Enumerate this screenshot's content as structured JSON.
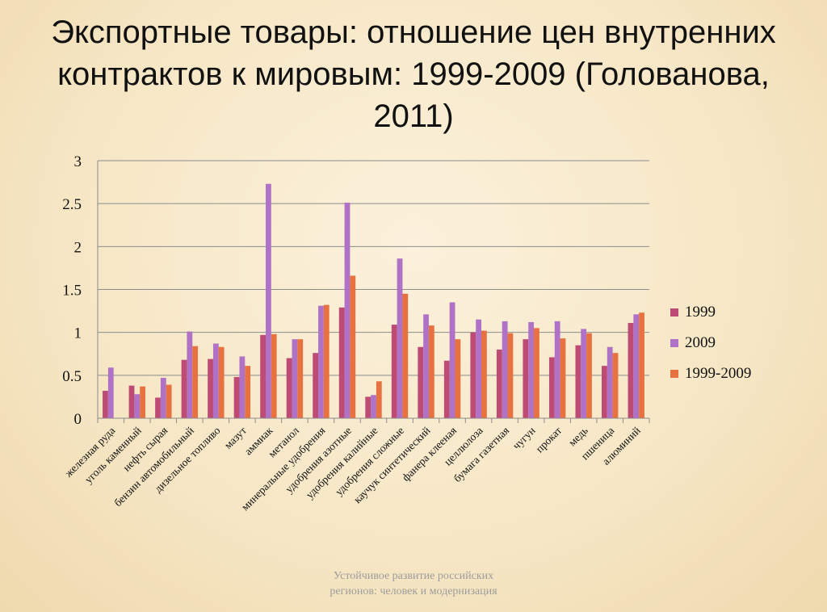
{
  "slide": {
    "title": "Экспортные товары: отношение цен внутренних контрактов к мировым: 1999-2009 (Голованова, 2011)",
    "footer_line1": "Устойчивое развитие российских",
    "footer_line2": "регионов: человек и модернизация"
  },
  "chart_data": {
    "type": "bar",
    "title": "",
    "xlabel": "",
    "ylabel": "",
    "ylim": [
      0,
      3
    ],
    "yticks": [
      "0",
      "0.5",
      "1",
      "1.5",
      "2",
      "2.5",
      "3"
    ],
    "grid": true,
    "legend_position": "right",
    "categories": [
      "железная руда",
      "уголь каменный",
      "нефть сырая",
      "бензин автомобильный",
      "дизельное топливо",
      "мазут",
      "аммиак",
      "метанол",
      "минеральные удобрения",
      "удобрения азотные",
      "удобрения калийные",
      "удобрения сложные",
      "каучук синтетический",
      "фанера клееная",
      "целлюлоза",
      "бумага газетная",
      "чугун",
      "прокат",
      "медь",
      "пшеница",
      "алюминий"
    ],
    "series": [
      {
        "name": "1999",
        "color": "#be4b74",
        "values": [
          0.32,
          0.38,
          0.24,
          0.68,
          0.69,
          0.48,
          0.97,
          0.7,
          0.76,
          1.29,
          0.25,
          1.09,
          0.83,
          0.67,
          1.0,
          0.8,
          0.92,
          0.71,
          0.85,
          0.61,
          1.11
        ]
      },
      {
        "name": "2009",
        "color": "#b072c6",
        "values": [
          0.59,
          0.28,
          0.47,
          1.01,
          0.87,
          0.72,
          2.73,
          0.92,
          1.31,
          2.51,
          0.27,
          1.86,
          1.21,
          1.35,
          1.15,
          1.13,
          1.12,
          1.13,
          1.04,
          0.83,
          1.21
        ]
      },
      {
        "name": "1999-2009",
        "color": "#e7723f",
        "values": [
          null,
          0.37,
          0.39,
          0.84,
          0.83,
          0.61,
          0.98,
          0.92,
          1.32,
          1.66,
          0.43,
          1.45,
          1.08,
          0.92,
          1.02,
          0.99,
          1.05,
          0.93,
          0.99,
          0.76,
          1.23
        ]
      }
    ]
  }
}
